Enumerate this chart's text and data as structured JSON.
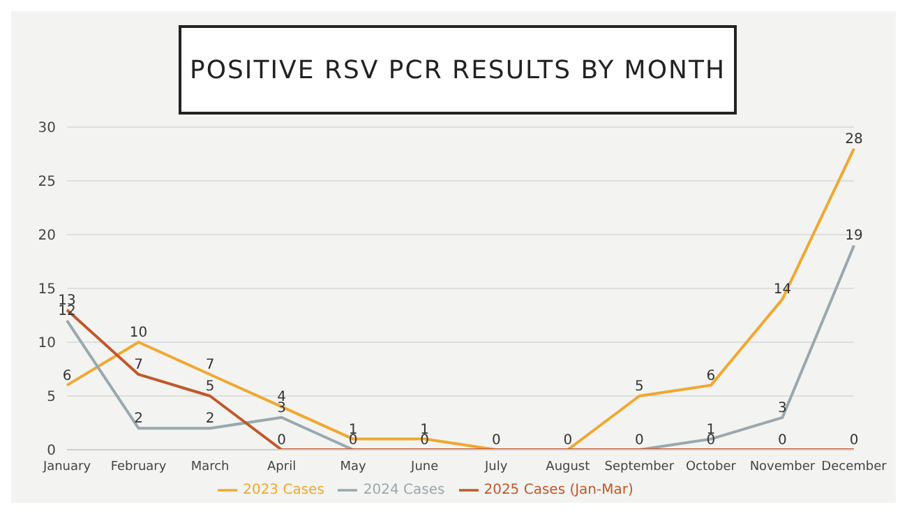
{
  "chart_data": {
    "type": "line",
    "title": "POSITIVE RSV PCR RESULTS BY MONTH",
    "categories": [
      "January",
      "February",
      "March",
      "April",
      "May",
      "June",
      "July",
      "August",
      "September",
      "October",
      "November",
      "December"
    ],
    "series": [
      {
        "name": "2023 Cases",
        "color": "#f0a830",
        "values": [
          6,
          10,
          7,
          4,
          1,
          1,
          0,
          0,
          5,
          6,
          14,
          28
        ],
        "value_labels": [
          "6",
          "10",
          "7",
          "4",
          "1",
          "1",
          "0",
          "0",
          "5",
          "6",
          "14",
          "28"
        ]
      },
      {
        "name": "2024 Cases",
        "color": "#98a8ae",
        "values": [
          12,
          2,
          2,
          3,
          0,
          0,
          0,
          0,
          0,
          1,
          3,
          19
        ],
        "value_labels": [
          "12",
          "2",
          "2",
          "3",
          "0",
          "0",
          null,
          null,
          "0",
          "1",
          "3",
          "19"
        ]
      },
      {
        "name": "2025 Cases (Jan-Mar)",
        "color": "#c0582a",
        "values": [
          13,
          7,
          5,
          0,
          0,
          0,
          0,
          0,
          0,
          0,
          0,
          0
        ],
        "value_labels": [
          "13",
          "7",
          "5",
          "0",
          null,
          null,
          null,
          null,
          null,
          "0",
          "0",
          "0"
        ]
      }
    ],
    "ylim": [
      0,
      30
    ],
    "yticks": [
      0,
      5,
      10,
      15,
      20,
      25,
      30
    ],
    "grid": "y",
    "legend": "bottom",
    "marker": "none"
  }
}
